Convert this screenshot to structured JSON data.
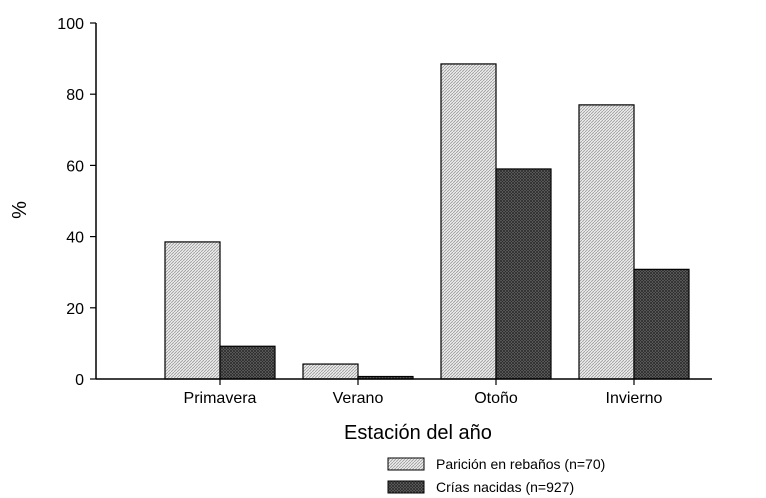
{
  "chart_data": {
    "type": "bar",
    "categories": [
      "Primavera",
      "Verano",
      "Otoño",
      "Invierno"
    ],
    "series": [
      {
        "name": "Parición en rebaños (n=70)",
        "values": [
          38.5,
          4.2,
          88.5,
          77
        ],
        "pattern": "light-hatch"
      },
      {
        "name": "Crías nacidas (n=927)",
        "values": [
          9.2,
          0.7,
          59,
          30.8
        ],
        "pattern": "dark-crosshatch"
      }
    ],
    "xlabel": "Estación del año",
    "ylabel": "%",
    "ylim": [
      0,
      100
    ],
    "yticks": [
      0,
      20,
      40,
      60,
      80,
      100
    ],
    "grid": false,
    "legend_position": "bottom-right"
  }
}
